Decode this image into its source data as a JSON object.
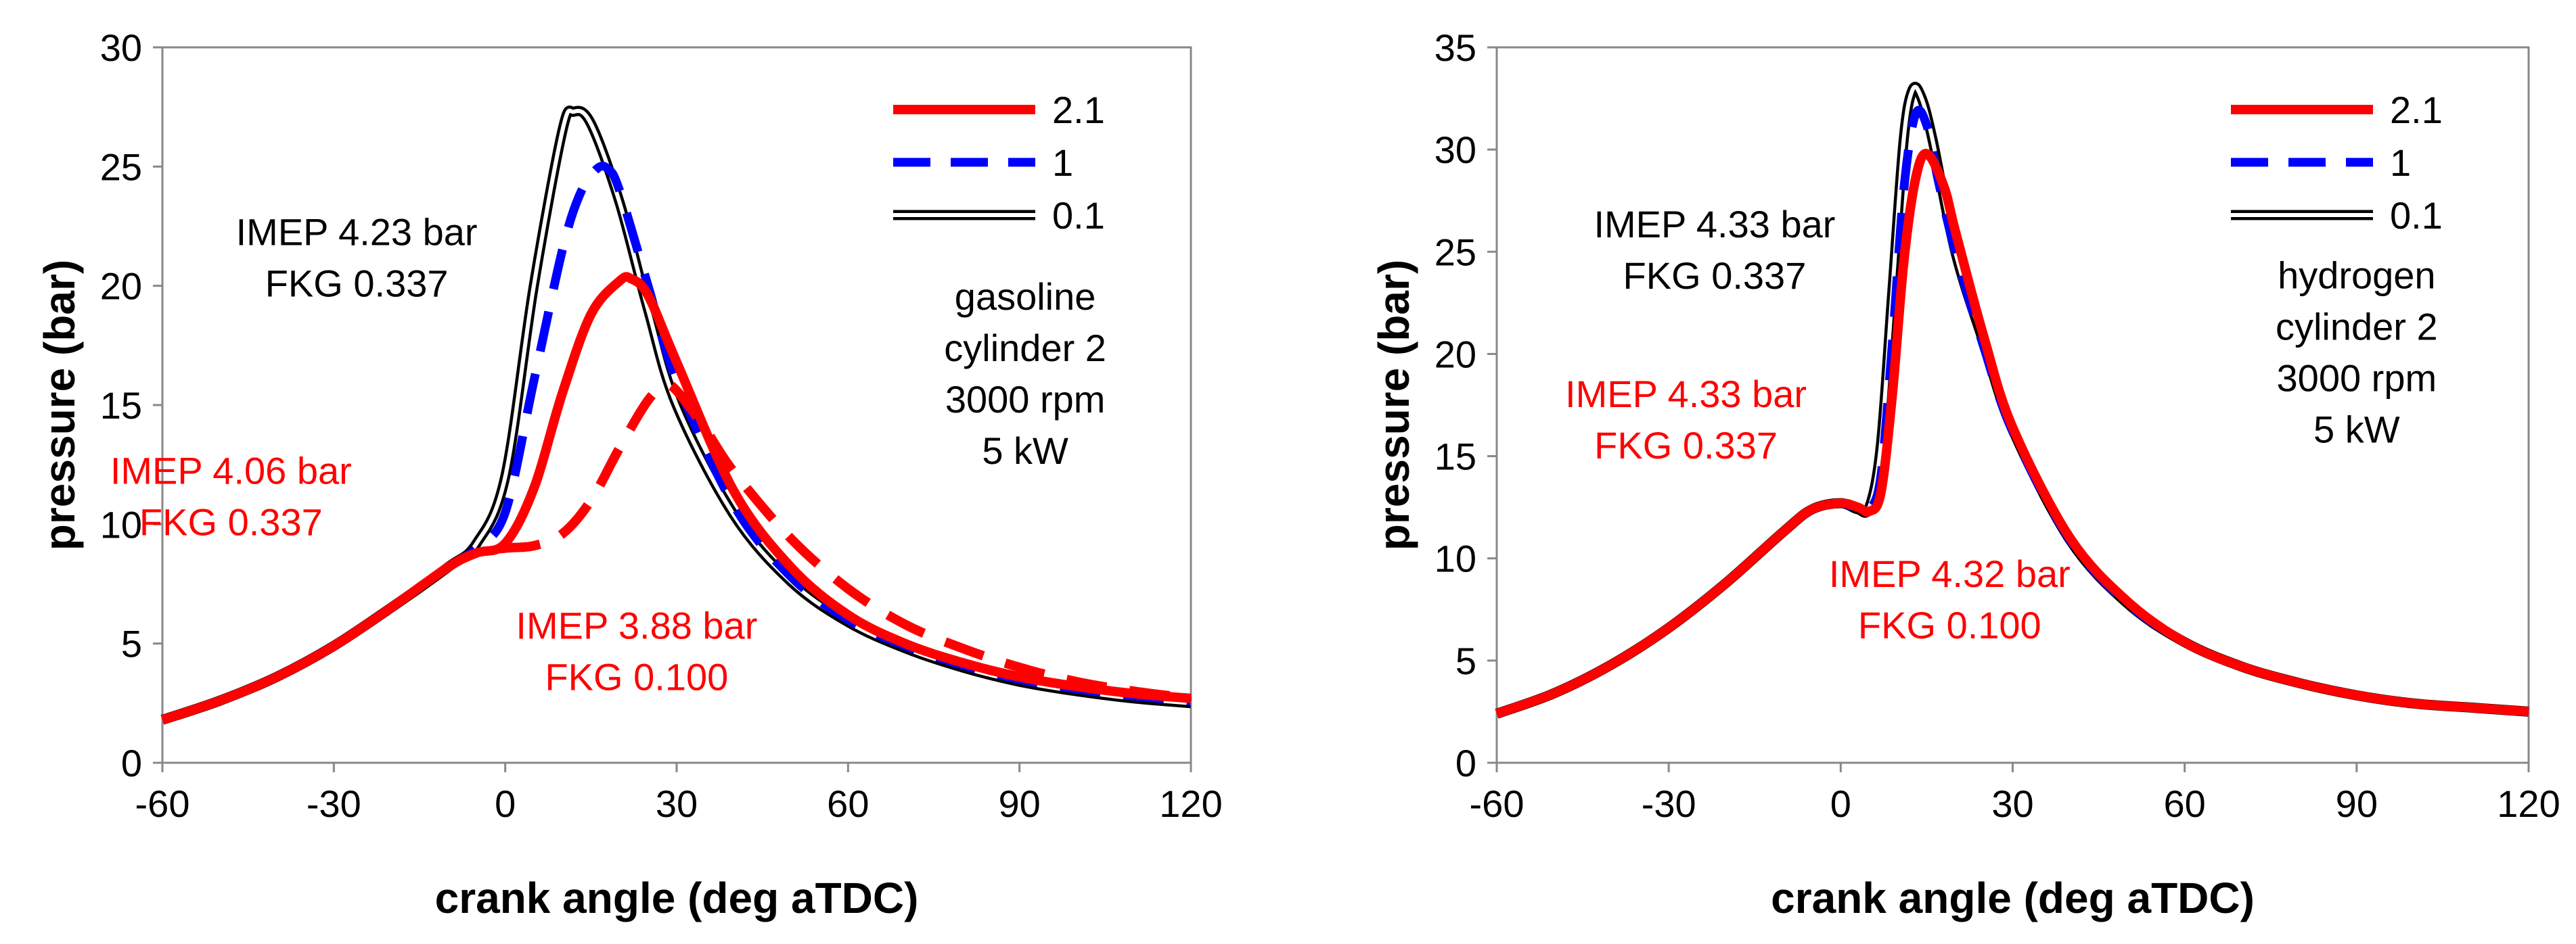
{
  "chart_data": [
    {
      "type": "line",
      "panel": "left",
      "xlabel": "crank angle (deg aTDC)",
      "ylabel": "pressure (bar)",
      "xlim": [
        -60,
        120
      ],
      "ylim": [
        0,
        30
      ],
      "xticks": [
        -60,
        -30,
        0,
        30,
        60,
        90,
        120
      ],
      "yticks": [
        0,
        5,
        10,
        15,
        20,
        25,
        30
      ],
      "legend": {
        "position": "top-right",
        "entries": [
          {
            "label": "2.1",
            "style": "solid-red"
          },
          {
            "label": "1",
            "style": "dashed-blue"
          },
          {
            "label": "0.1",
            "style": "double-black"
          }
        ]
      },
      "annotations": [
        {
          "lines": [
            "IMEP 4.23 bar",
            "FKG 0.337"
          ],
          "color": "#000000",
          "x": -26,
          "y": 21.7
        },
        {
          "lines": [
            "IMEP 4.06 bar",
            "FKG 0.337"
          ],
          "color": "#ff0000",
          "x": -48,
          "y": 11.7
        },
        {
          "lines": [
            "IMEP 3.88 bar",
            "FKG 0.100"
          ],
          "color": "#ff0000",
          "x": 23,
          "y": 5.2
        },
        {
          "lines": [
            "gasoline",
            "cylinder 2",
            "3000 rpm",
            "5 kW"
          ],
          "color": "#000000",
          "x": 91,
          "y": 19.0
        }
      ],
      "series": [
        {
          "name": "0.1",
          "style": "double-black",
          "x": [
            -60,
            -50,
            -40,
            -30,
            -20,
            -10,
            -5,
            0,
            5,
            10,
            12,
            15,
            20,
            25,
            30,
            40,
            50,
            60,
            70,
            80,
            90,
            100,
            110,
            120
          ],
          "y": [
            1.8,
            2.6,
            3.6,
            4.9,
            6.5,
            8.2,
            9.2,
            12.0,
            20.0,
            26.5,
            27.3,
            26.8,
            23.5,
            19.0,
            15.0,
            10.4,
            7.6,
            5.9,
            4.8,
            4.0,
            3.4,
            3.0,
            2.7,
            2.5
          ]
        },
        {
          "name": "1",
          "style": "dashed-blue",
          "x": [
            -60,
            -50,
            -40,
            -30,
            -20,
            -10,
            -5,
            0,
            5,
            10,
            13,
            16,
            18,
            20,
            25,
            30,
            40,
            50,
            60,
            70,
            80,
            90,
            100,
            110,
            120
          ],
          "y": [
            1.8,
            2.6,
            3.6,
            4.9,
            6.5,
            8.2,
            9.0,
            10.5,
            16.0,
            21.5,
            23.8,
            24.9,
            24.9,
            24.0,
            20.0,
            16.0,
            10.8,
            7.8,
            6.0,
            4.9,
            4.1,
            3.5,
            3.1,
            2.8,
            2.6
          ]
        },
        {
          "name": "2.1 (FKG 0.337)",
          "style": "solid-red",
          "x": [
            -60,
            -50,
            -40,
            -30,
            -20,
            -10,
            -5,
            0,
            5,
            10,
            15,
            20,
            22,
            25,
            30,
            40,
            50,
            60,
            70,
            80,
            90,
            100,
            110,
            120
          ],
          "y": [
            1.8,
            2.6,
            3.6,
            4.9,
            6.5,
            8.2,
            8.8,
            9.2,
            11.5,
            15.5,
            18.8,
            20.2,
            20.3,
            19.6,
            16.8,
            11.4,
            8.2,
            6.2,
            5.0,
            4.2,
            3.6,
            3.2,
            2.9,
            2.7
          ]
        },
        {
          "name": "2.1 (FKG 0.100)",
          "style": "dashed-red",
          "x": [
            -60,
            -50,
            -40,
            -30,
            -20,
            -10,
            -5,
            0,
            5,
            10,
            15,
            20,
            25,
            28,
            30,
            35,
            40,
            50,
            60,
            70,
            80,
            90,
            100,
            110,
            120
          ],
          "y": [
            1.8,
            2.6,
            3.6,
            4.9,
            6.5,
            8.2,
            8.8,
            9.0,
            9.1,
            9.6,
            11.0,
            13.2,
            15.2,
            15.8,
            15.6,
            14.0,
            12.2,
            9.4,
            7.3,
            5.8,
            4.8,
            4.0,
            3.4,
            3.0,
            2.7
          ]
        }
      ]
    },
    {
      "type": "line",
      "panel": "right",
      "xlabel": "crank angle (deg aTDC)",
      "ylabel": "pressure (bar)",
      "xlim": [
        -60,
        120
      ],
      "ylim": [
        0,
        35
      ],
      "xticks": [
        -60,
        -30,
        0,
        30,
        60,
        90,
        120
      ],
      "yticks": [
        0,
        5,
        10,
        15,
        20,
        25,
        30,
        35
      ],
      "legend": {
        "position": "top-right",
        "entries": [
          {
            "label": "2.1",
            "style": "solid-red"
          },
          {
            "label": "1",
            "style": "dashed-blue"
          },
          {
            "label": "0.1",
            "style": "double-black"
          }
        ]
      },
      "annotations": [
        {
          "lines": [
            "IMEP 4.33 bar",
            "FKG 0.337"
          ],
          "color": "#000000",
          "x": -22,
          "y": 25.7
        },
        {
          "lines": [
            "IMEP 4.33 bar",
            "FKG 0.337"
          ],
          "color": "#ff0000",
          "x": -27,
          "y": 17.4
        },
        {
          "lines": [
            "IMEP 4.32 bar",
            "FKG 0.100"
          ],
          "color": "#ff0000",
          "x": 19,
          "y": 8.6
        },
        {
          "lines": [
            "hydrogen",
            "cylinder 2",
            "3000 rpm",
            "5 kW"
          ],
          "color": "#000000",
          "x": 90,
          "y": 23.2
        }
      ],
      "series": [
        {
          "name": "0.1",
          "style": "double-black",
          "x": [
            -60,
            -50,
            -40,
            -30,
            -20,
            -10,
            -5,
            0,
            3,
            5,
            7,
            9,
            11,
            12.5,
            14,
            16,
            20,
            25,
            30,
            40,
            50,
            60,
            70,
            80,
            90,
            100,
            110,
            120
          ],
          "y": [
            2.4,
            3.4,
            4.8,
            6.6,
            8.8,
            11.3,
            12.4,
            12.7,
            12.4,
            12.5,
            15.5,
            23.0,
            30.5,
            32.9,
            32.6,
            30.5,
            25.0,
            20.5,
            16.3,
            10.9,
            7.8,
            5.9,
            4.7,
            3.9,
            3.3,
            2.9,
            2.7,
            2.5
          ]
        },
        {
          "name": "1",
          "style": "dashed-blue",
          "x": [
            -60,
            -50,
            -40,
            -30,
            -20,
            -10,
            -5,
            0,
            3,
            5,
            7,
            9,
            11,
            13,
            15,
            17,
            20,
            25,
            30,
            40,
            50,
            60,
            70,
            80,
            90,
            100,
            110,
            120
          ],
          "y": [
            2.4,
            3.4,
            4.8,
            6.6,
            8.8,
            11.3,
            12.4,
            12.7,
            12.4,
            12.4,
            14.0,
            20.5,
            28.0,
            31.7,
            31.2,
            28.5,
            25.0,
            20.3,
            16.2,
            10.9,
            7.8,
            5.9,
            4.7,
            3.9,
            3.3,
            2.9,
            2.7,
            2.5
          ]
        },
        {
          "name": "2.1",
          "style": "solid-red",
          "x": [
            -60,
            -50,
            -40,
            -30,
            -20,
            -10,
            -5,
            0,
            3,
            5,
            7,
            9,
            11,
            13,
            15,
            18,
            20,
            25,
            30,
            40,
            50,
            60,
            70,
            80,
            90,
            100,
            110,
            120
          ],
          "y": [
            2.4,
            3.4,
            4.8,
            6.6,
            8.8,
            11.3,
            12.4,
            12.7,
            12.5,
            12.3,
            13.2,
            18.0,
            24.5,
            28.5,
            29.8,
            28.2,
            26.0,
            20.8,
            16.4,
            11.0,
            7.9,
            5.9,
            4.7,
            3.9,
            3.3,
            2.9,
            2.7,
            2.5
          ]
        }
      ]
    }
  ]
}
